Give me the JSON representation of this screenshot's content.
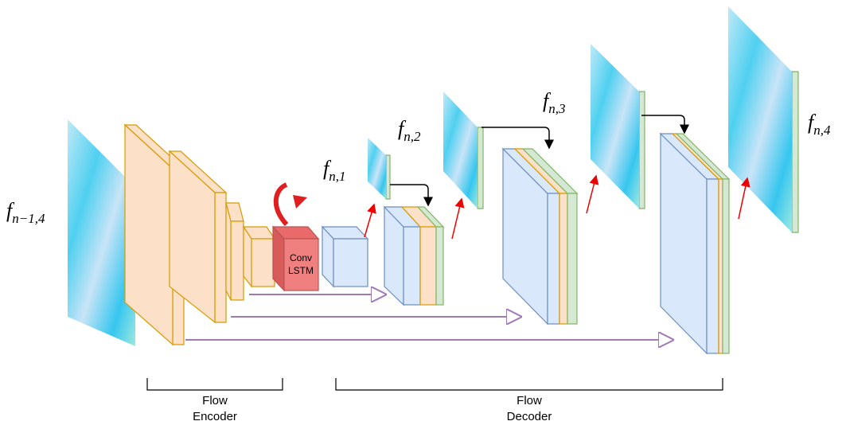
{
  "labels": {
    "input": {
      "main": "f",
      "sub": "n−1,4"
    },
    "out1": {
      "main": "f",
      "sub": "n,1"
    },
    "out2": {
      "main": "f",
      "sub": "n,2"
    },
    "out3": {
      "main": "f",
      "sub": "n,3"
    },
    "out4": {
      "main": "f",
      "sub": "n,4"
    }
  },
  "conv_lstm": [
    "Conv",
    "LSTM"
  ],
  "encoder": [
    "Flow",
    "Encoder"
  ],
  "decoder": [
    "Flow",
    "Decoder"
  ]
}
